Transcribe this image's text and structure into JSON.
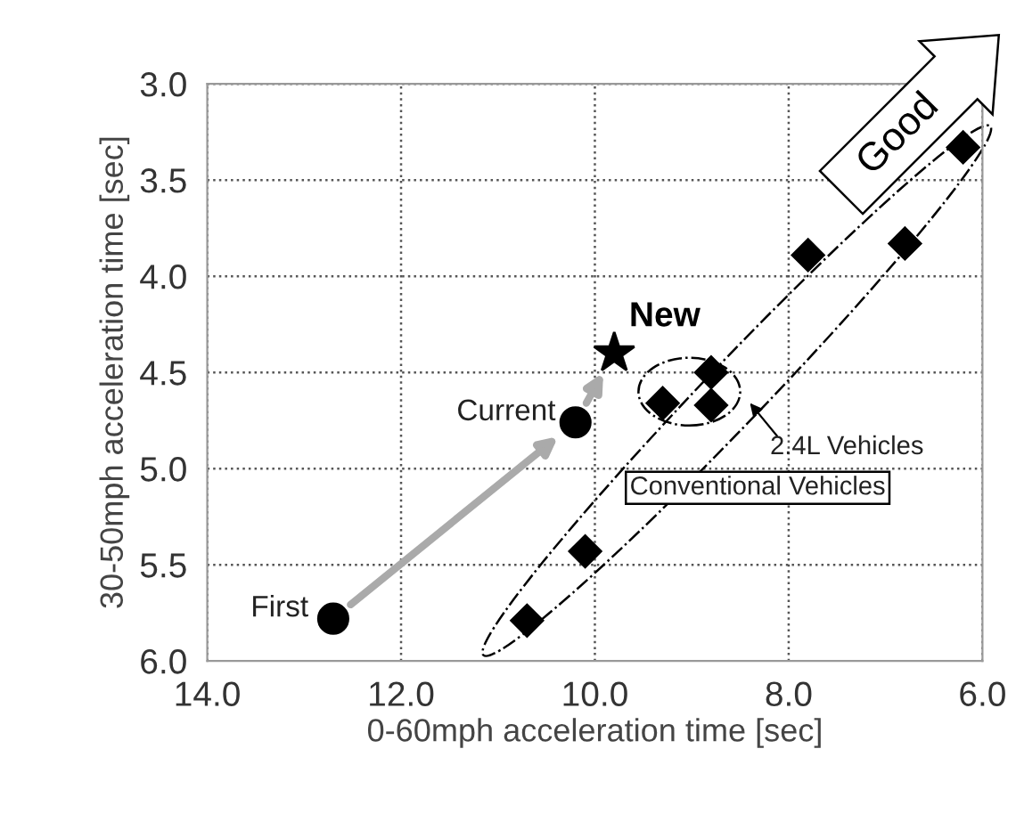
{
  "chart_data": {
    "type": "scatter",
    "xlabel": "0-60mph acceleration time [sec]",
    "ylabel": "30-50mph acceleration time [sec]",
    "xlim": [
      14,
      6
    ],
    "ylim": [
      6,
      3
    ],
    "xticks": [
      {
        "value": 14,
        "label": "14.0"
      },
      {
        "value": 12,
        "label": "12.0"
      },
      {
        "value": 10,
        "label": "10.0"
      },
      {
        "value": 8,
        "label": "8.0"
      },
      {
        "value": 6,
        "label": "6.0"
      }
    ],
    "yticks": [
      {
        "value": 3,
        "label": "3.0"
      },
      3.5,
      {
        "value": 4,
        "label": "4.0"
      },
      4.5,
      {
        "value": 5,
        "label": "5.0"
      },
      5.5,
      {
        "value": 6,
        "label": "6.0"
      }
    ],
    "grid": true,
    "series": [
      {
        "color": "#000000",
        "marker": "circle",
        "x": [
          12.7,
          10.2
        ],
        "values": [
          5.78,
          4.76
        ]
      },
      {
        "color": "#000000",
        "marker": "star",
        "x": [
          9.8
        ],
        "values": [
          4.4
        ]
      },
      {
        "color": "#000000",
        "marker": "diamond",
        "x": [
          10.7,
          10.1,
          9.3,
          8.8,
          8.8,
          7.8,
          6.8,
          6.2
        ],
        "values": [
          5.79,
          5.43,
          4.66,
          4.5,
          4.67,
          3.89,
          3.83,
          3.33
        ]
      }
    ],
    "annotations": [
      {
        "text": "First",
        "x": 12.7,
        "y": 5.78
      },
      {
        "text": "Current",
        "x": 10.2,
        "y": 4.76
      },
      {
        "text": "New",
        "x": 9.8,
        "y": 4.4
      },
      "2.4L Vehicles",
      "Conventional Vehicles",
      "Good"
    ]
  }
}
